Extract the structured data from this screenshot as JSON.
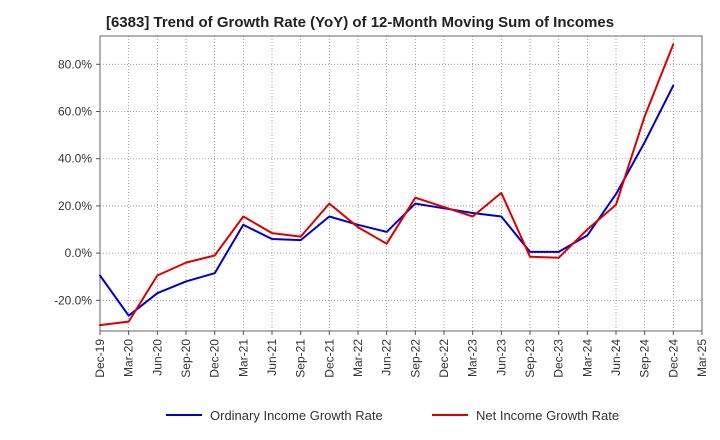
{
  "chart_data": {
    "type": "line",
    "title": "[6383]  Trend of Growth Rate (YoY) of 12-Month Moving Sum of Incomes",
    "xlabel": "",
    "ylabel": "",
    "ylim": [
      -33,
      92
    ],
    "x": [
      "Dec-19",
      "Mar-20",
      "Jun-20",
      "Sep-20",
      "Dec-20",
      "Mar-21",
      "Jun-21",
      "Sep-21",
      "Dec-21",
      "Mar-22",
      "Jun-22",
      "Sep-22",
      "Dec-22",
      "Mar-23",
      "Jun-23",
      "Sep-23",
      "Dec-23",
      "Mar-24",
      "Jun-24",
      "Sep-24",
      "Dec-24",
      "Mar-25"
    ],
    "yticks": [
      -20,
      0,
      20,
      40,
      60,
      80
    ],
    "ytick_labels": [
      "-20.0%",
      "0.0%",
      "20.0%",
      "40.0%",
      "60.0%",
      "80.0%"
    ],
    "grid": "dotted",
    "legend_position": "bottom",
    "series": [
      {
        "name": "Ordinary Income Growth Rate",
        "color": "#0000cc",
        "values": [
          -9.5,
          -26.5,
          -17,
          -12,
          -8.5,
          12,
          6,
          5.5,
          15.5,
          12,
          9,
          21,
          19,
          17,
          15.5,
          0.5,
          0.5,
          7.5,
          25,
          47,
          71,
          null
        ]
      },
      {
        "name": "Net Income Growth Rate",
        "color": "#dd0000",
        "values": [
          -30.5,
          -29,
          -9.5,
          -4,
          -1,
          15.5,
          8.5,
          7,
          21,
          11,
          4,
          23.5,
          19.5,
          15.5,
          25.5,
          -1.5,
          -2,
          10,
          20.5,
          58,
          88.5,
          null
        ]
      }
    ]
  }
}
